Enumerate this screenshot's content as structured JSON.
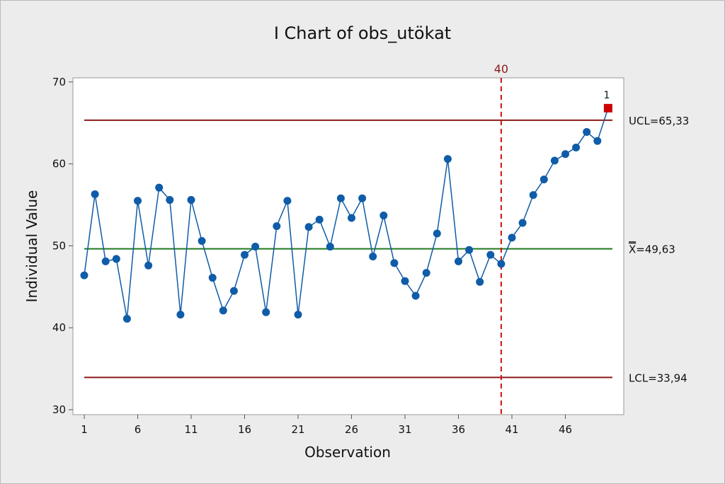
{
  "chart_data": {
    "type": "line",
    "title": "I Chart of obs_utökat",
    "xlabel": "Observation",
    "ylabel": "Individual Value",
    "xlim": [
      0,
      50
    ],
    "ylim": [
      30,
      70
    ],
    "x_ticks": [
      1,
      6,
      11,
      16,
      21,
      26,
      31,
      36,
      41,
      46
    ],
    "y_ticks": [
      30,
      40,
      50,
      60,
      70
    ],
    "series": [
      {
        "name": "obs_utökat",
        "x": [
          1,
          2,
          3,
          4,
          5,
          6,
          7,
          8,
          9,
          10,
          11,
          12,
          13,
          14,
          15,
          16,
          17,
          18,
          19,
          20,
          21,
          22,
          23,
          24,
          25,
          26,
          27,
          28,
          29,
          30,
          31,
          32,
          33,
          34,
          35,
          36,
          37,
          38,
          39,
          40,
          41,
          42,
          43,
          44,
          45,
          46,
          47,
          48,
          49,
          50
        ],
        "values": [
          46.4,
          56.3,
          48.1,
          48.4,
          41.1,
          55.5,
          47.6,
          57.1,
          55.6,
          41.6,
          55.6,
          50.6,
          46.1,
          42.1,
          44.5,
          48.9,
          49.9,
          41.9,
          52.4,
          55.5,
          41.6,
          52.3,
          53.2,
          49.9,
          55.8,
          53.4,
          55.8,
          48.7,
          53.7,
          47.9,
          45.7,
          43.9,
          46.7,
          51.5,
          60.6,
          48.1,
          49.5,
          45.6,
          48.9,
          47.8,
          51.0,
          52.8,
          56.2,
          58.1,
          60.4,
          61.2,
          62.0,
          63.9,
          62.8,
          66.8
        ],
        "color": "#0f5ca8"
      }
    ],
    "control_limits": {
      "ucl": {
        "label": "UCL=65,33",
        "value": 65.33,
        "color": "#8b1a1a"
      },
      "center": {
        "label": "=49,63",
        "symbol": "X",
        "value": 49.63,
        "color": "#1f7a1f"
      },
      "lcl": {
        "label": "LCL=33,94",
        "value": 33.94,
        "color": "#8b1a1a"
      }
    },
    "stage_line": {
      "x": 40,
      "label": "40",
      "color": "#cc1111"
    },
    "out_of_control": [
      {
        "x": 50,
        "value": 66.8,
        "test": "1",
        "color": "#cc0000"
      }
    ]
  }
}
